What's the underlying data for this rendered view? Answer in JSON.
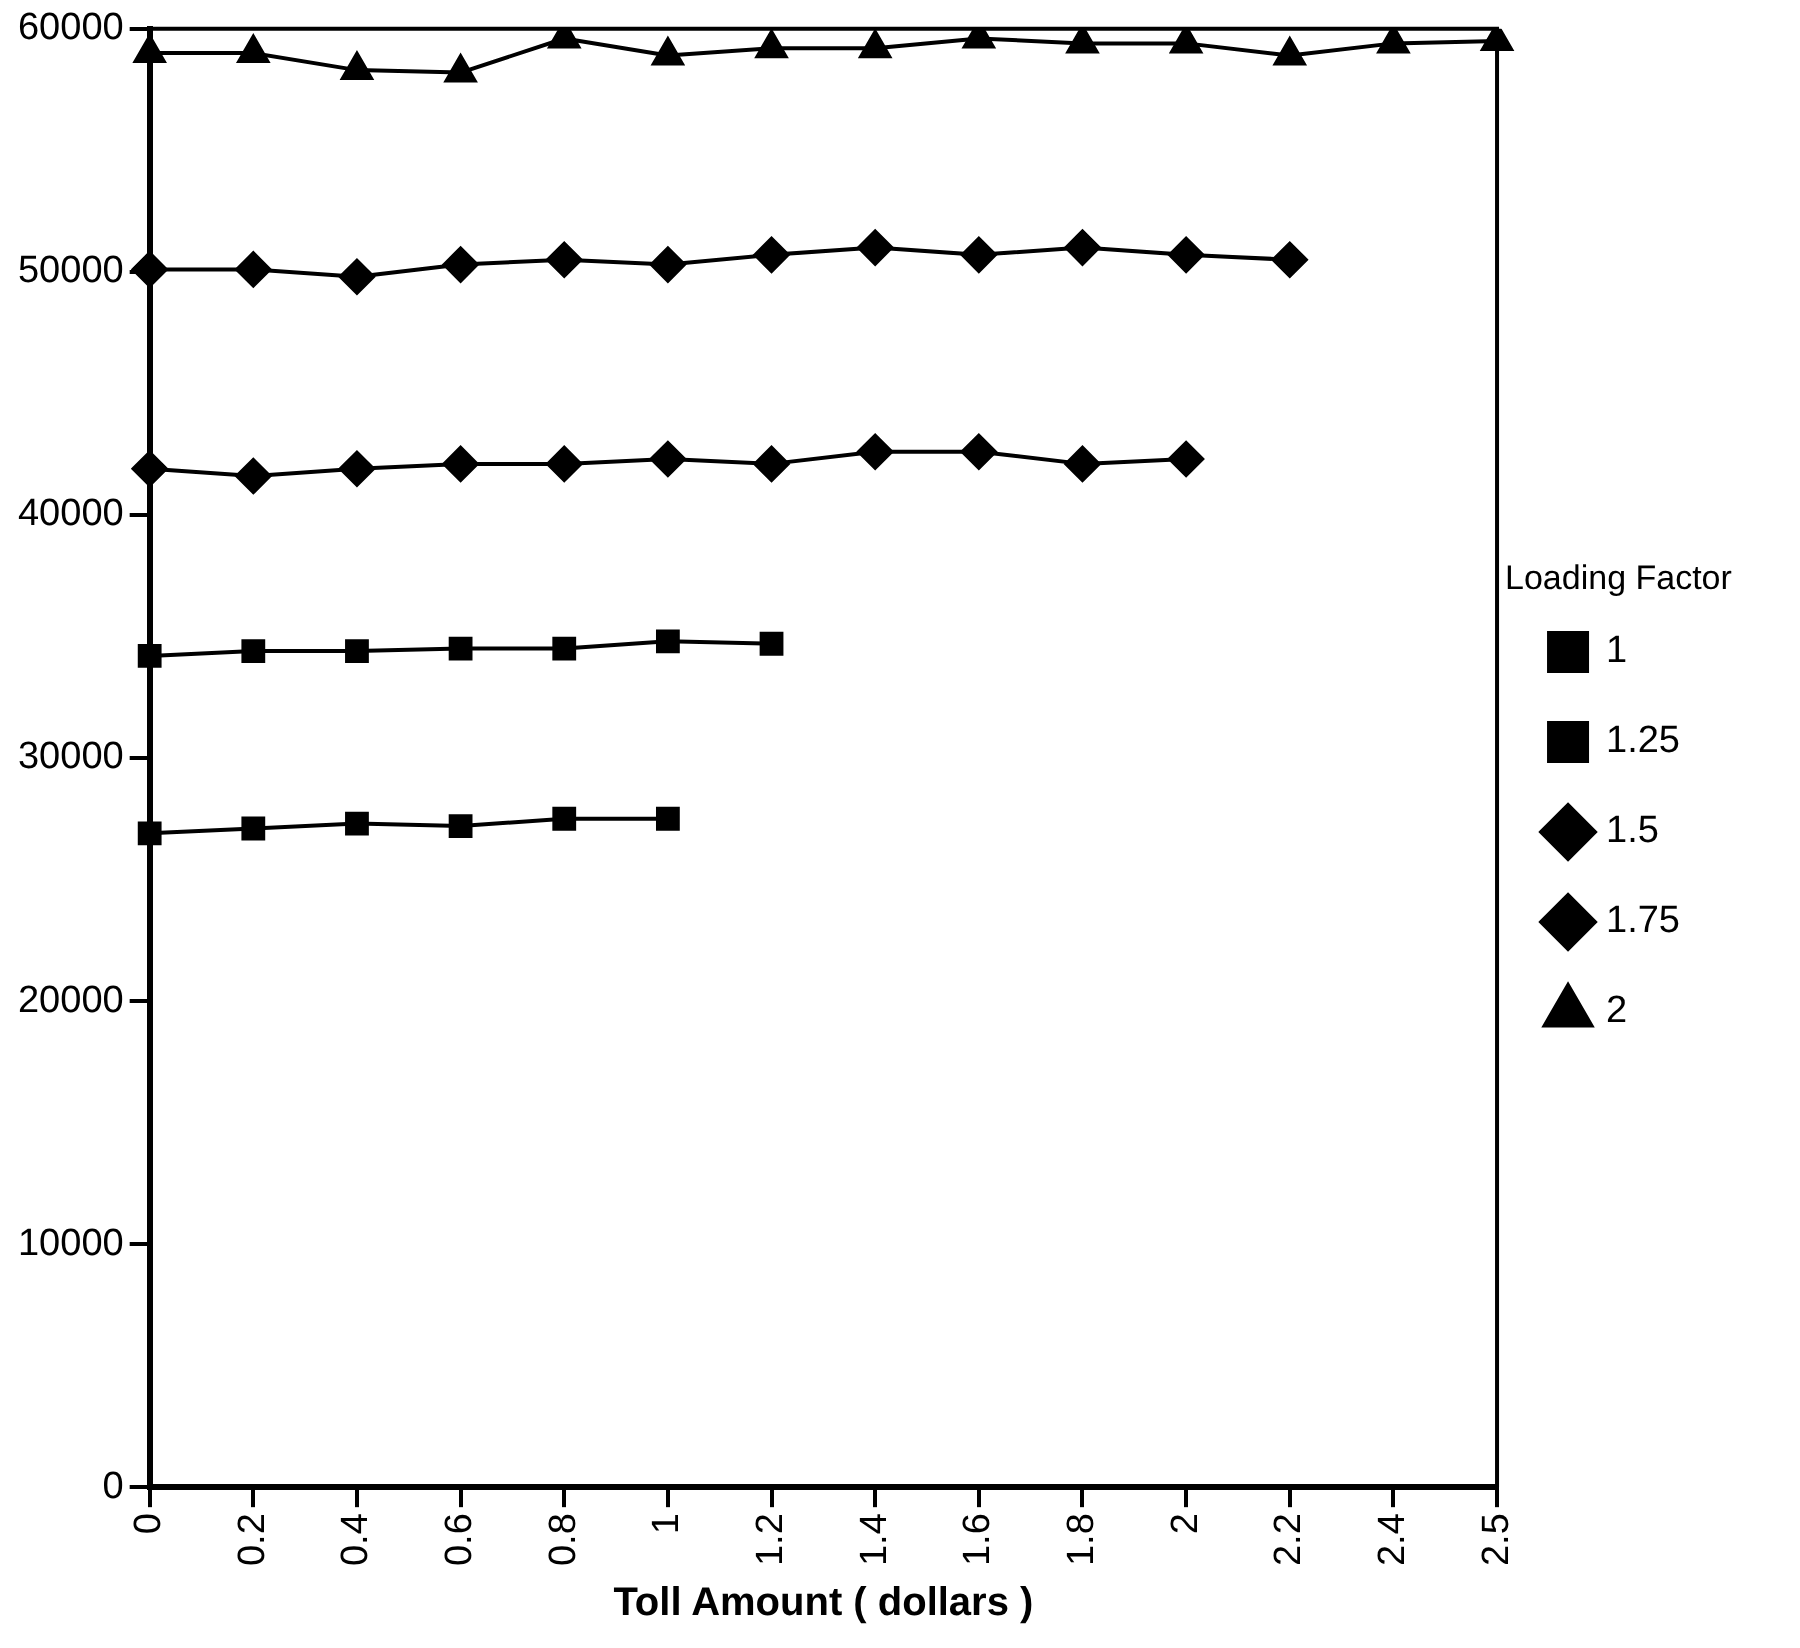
{
  "chart_data": {
    "type": "line",
    "xlabel": "Toll Amount ( dollars )",
    "legend_title": "Loading Factor",
    "categories": [
      "0",
      "0.2",
      "0.4",
      "0.6",
      "0.8",
      "1",
      "1.2",
      "1.4",
      "1.6",
      "1.8",
      "2",
      "2.2",
      "2.4",
      "2.5"
    ],
    "series": [
      {
        "name": "1",
        "color": "#000000",
        "marker": "square",
        "values": [
          26900,
          27100,
          27300,
          27200,
          27500,
          27500,
          null,
          null,
          null,
          null,
          null,
          null,
          null,
          null
        ]
      },
      {
        "name": "1.25",
        "color": "#000000",
        "marker": "square",
        "values": [
          34200,
          34400,
          34400,
          34500,
          34500,
          34800,
          34700,
          null,
          null,
          null,
          null,
          null,
          null,
          null
        ]
      },
      {
        "name": "1.5",
        "color": "#000000",
        "marker": "diamond",
        "values": [
          41900,
          41600,
          41900,
          42100,
          42100,
          42300,
          42100,
          42600,
          42600,
          42100,
          42300,
          null,
          null,
          null
        ]
      },
      {
        "name": "1.75",
        "color": "#000000",
        "marker": "diamond",
        "values": [
          50100,
          50100,
          49800,
          50300,
          50500,
          50300,
          50700,
          51000,
          50700,
          51000,
          50700,
          50500,
          null,
          null
        ]
      },
      {
        "name": "2",
        "color": "#000000",
        "marker": "triangle",
        "values": [
          59000,
          59000,
          58300,
          58200,
          59600,
          58900,
          59200,
          59200,
          59600,
          59400,
          59400,
          58900,
          59400,
          59500
        ]
      }
    ],
    "ylim": [
      0,
      60000
    ],
    "yticks": [
      0,
      10000,
      20000,
      30000,
      40000,
      50000,
      60000
    ],
    "grid": false,
    "legend": "right",
    "line_style": "solid"
  }
}
